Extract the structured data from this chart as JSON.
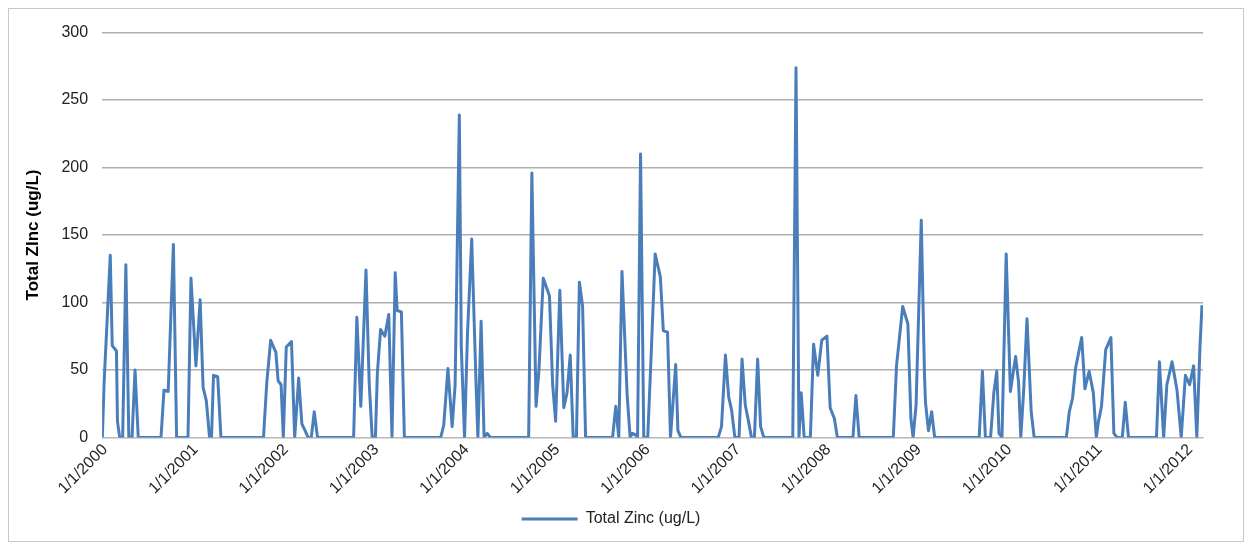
{
  "chart_data": {
    "type": "line",
    "ylabel": "Total ZInc (ug/L)",
    "xlim": [
      "1999-12-20",
      "2012-02-22"
    ],
    "ylim": [
      0,
      300
    ],
    "yticks": [
      0,
      50,
      100,
      150,
      200,
      250,
      300
    ],
    "xticks": [
      {
        "value": "2000-01-01",
        "label": "1/1/2000"
      },
      {
        "value": "2001-01-01",
        "label": "1/1/2001"
      },
      {
        "value": "2002-01-01",
        "label": "1/1/2002"
      },
      {
        "value": "2003-01-01",
        "label": "1/1/2003"
      },
      {
        "value": "2004-01-01",
        "label": "1/1/2004"
      },
      {
        "value": "2005-01-01",
        "label": "1/1/2005"
      },
      {
        "value": "2006-01-01",
        "label": "1/1/2006"
      },
      {
        "value": "2007-01-01",
        "label": "1/1/2007"
      },
      {
        "value": "2008-01-01",
        "label": "1/1/2008"
      },
      {
        "value": "2009-01-01",
        "label": "1/1/2009"
      },
      {
        "value": "2010-01-01",
        "label": "1/1/2010"
      },
      {
        "value": "2011-01-01",
        "label": "1/1/2011"
      },
      {
        "value": "2012-01-01",
        "label": "1/1/2012"
      }
    ],
    "grid": "y",
    "legend": "bottom",
    "marker": "none",
    "line_style": "solid",
    "series": [
      {
        "name": "Total Zinc (ug/L)",
        "color": "#4a7ebb",
        "x": [
          "1999-12-21",
          "1999-12-28",
          "2000-01-22",
          "2000-01-30",
          "2000-02-16",
          "2000-02-20",
          "2000-02-29",
          "2000-03-12",
          "2000-03-25",
          "2000-04-06",
          "2000-04-19",
          "2000-05-01",
          "2000-05-14",
          "2000-08-14",
          "2000-08-26",
          "2000-09-12",
          "2000-10-03",
          "2000-10-16",
          "2000-12-01",
          "2000-12-13",
          "2001-01-02",
          "2001-01-19",
          "2001-01-31",
          "2001-02-13",
          "2001-02-26",
          "2001-03-06",
          "2001-03-14",
          "2001-03-31",
          "2001-04-13",
          "2001-10-02",
          "2001-10-15",
          "2001-10-31",
          "2001-11-21",
          "2001-11-30",
          "2001-12-12",
          "2001-12-21",
          "2002-01-02",
          "2002-01-23",
          "2002-02-05",
          "2002-02-21",
          "2002-03-06",
          "2002-03-19",
          "2002-03-31",
          "2002-04-13",
          "2002-04-25",
          "2002-05-08",
          "2002-10-01",
          "2002-10-14",
          "2002-10-30",
          "2002-11-20",
          "2002-12-03",
          "2002-12-15",
          "2002-12-28",
          "2003-01-05",
          "2003-01-18",
          "2003-02-04",
          "2003-02-20",
          "2003-03-05",
          "2003-03-18",
          "2003-03-26",
          "2003-04-12",
          "2003-04-24",
          "2003-09-18",
          "2003-09-30",
          "2003-10-17",
          "2003-11-03",
          "2003-11-15",
          "2003-12-02",
          "2003-12-10",
          "2003-12-23",
          "2004-01-04",
          "2004-01-21",
          "2004-02-07",
          "2004-02-15",
          "2004-02-28",
          "2004-03-11",
          "2004-03-24",
          "2004-04-05",
          "2004-09-07",
          "2004-09-20",
          "2004-10-07",
          "2004-10-19",
          "2004-11-05",
          "2004-11-30",
          "2004-12-13",
          "2004-12-25",
          "2005-01-11",
          "2005-01-27",
          "2005-02-09",
          "2005-02-22",
          "2005-03-06",
          "2005-03-19",
          "2005-03-31",
          "2005-04-13",
          "2005-04-25",
          "2005-08-12",
          "2005-08-25",
          "2005-09-06",
          "2005-09-19",
          "2005-10-10",
          "2005-10-22",
          "2005-10-31",
          "2005-11-12",
          "2005-11-21",
          "2005-12-03",
          "2005-12-16",
          "2006-01-01",
          "2006-01-14",
          "2006-01-31",
          "2006-02-21",
          "2006-03-05",
          "2006-03-22",
          "2006-04-03",
          "2006-04-24",
          "2006-05-03",
          "2006-05-15",
          "2006-10-13",
          "2006-10-26",
          "2006-11-11",
          "2006-11-24",
          "2006-12-06",
          "2006-12-19",
          "2007-01-05",
          "2007-01-17",
          "2007-01-30",
          "2007-02-11",
          "2007-02-24",
          "2007-03-08",
          "2007-03-21",
          "2007-04-02",
          "2007-04-15",
          "2007-08-10",
          "2007-08-23",
          "2007-09-04",
          "2007-09-13",
          "2007-09-25",
          "2007-10-20",
          "2007-11-02",
          "2007-11-19",
          "2007-12-05",
          "2007-12-26",
          "2008-01-08",
          "2008-01-25",
          "2008-02-06",
          "2008-04-09",
          "2008-04-21",
          "2008-05-04",
          "2008-09-19",
          "2008-10-02",
          "2008-10-27",
          "2008-11-17",
          "2008-11-29",
          "2008-12-08",
          "2008-12-20",
          "2009-01-10",
          "2009-01-23",
          "2009-01-27",
          "2009-02-08",
          "2009-02-21",
          "2009-03-05",
          "2009-09-01",
          "2009-09-14",
          "2009-09-26",
          "2009-10-17",
          "2009-10-30",
          "2009-11-11",
          "2009-11-20",
          "2009-12-02",
          "2009-12-19",
          "2010-01-05",
          "2010-01-26",
          "2010-02-07",
          "2010-02-16",
          "2010-02-28",
          "2010-03-13",
          "2010-03-30",
          "2010-04-11",
          "2010-08-19",
          "2010-08-31",
          "2010-09-13",
          "2010-09-25",
          "2010-10-20",
          "2010-11-02",
          "2010-11-19",
          "2010-12-06",
          "2010-12-18",
          "2010-12-26",
          "2011-01-08",
          "2011-01-25",
          "2011-02-15",
          "2011-02-27",
          "2011-03-12",
          "2011-04-02",
          "2011-04-14",
          "2011-04-27",
          "2011-08-18",
          "2011-08-30",
          "2011-09-16",
          "2011-09-29",
          "2011-10-20",
          "2011-11-09",
          "2011-11-26",
          "2011-12-13",
          "2011-12-30",
          "2012-01-15",
          "2012-01-28",
          "2012-02-10",
          "2012-02-18"
        ],
        "values": [
          0,
          40,
          135,
          68,
          64,
          12,
          0,
          0,
          128,
          0,
          0,
          50,
          0,
          0,
          35,
          34,
          143,
          0,
          0,
          118,
          53,
          102,
          37,
          27,
          0,
          0,
          46,
          45,
          0,
          0,
          40,
          72,
          63,
          42,
          39,
          0,
          67,
          71,
          0,
          44,
          10,
          5,
          0,
          0,
          19,
          0,
          0,
          89,
          23,
          124,
          40,
          0,
          0,
          48,
          80,
          75,
          91,
          0,
          122,
          94,
          93,
          0,
          0,
          9,
          51,
          8,
          39,
          239,
          67,
          0,
          77,
          147,
          43,
          0,
          86,
          0,
          3,
          0,
          0,
          196,
          23,
          51,
          118,
          105,
          39,
          12,
          109,
          22,
          33,
          61,
          0,
          0,
          115,
          97,
          0,
          0,
          23,
          0,
          123,
          31,
          0,
          3,
          2,
          0,
          210,
          0,
          0,
          57,
          136,
          119,
          79,
          78,
          0,
          54,
          5,
          0,
          0,
          8,
          61,
          30,
          20,
          0,
          0,
          58,
          24,
          13,
          0,
          0,
          58,
          8,
          0,
          0,
          274,
          0,
          33,
          0,
          0,
          69,
          46,
          72,
          75,
          22,
          14,
          0,
          0,
          31,
          0,
          0,
          53,
          97,
          84,
          14,
          0,
          24,
          161,
          46,
          26,
          5,
          19,
          0,
          0,
          49,
          0,
          0,
          33,
          49,
          3,
          0,
          136,
          34,
          60,
          41,
          0,
          36,
          88,
          19,
          0,
          0,
          19,
          29,
          51,
          74,
          36,
          49,
          33,
          0,
          11,
          23,
          65,
          74,
          3,
          0,
          0,
          26,
          0,
          0,
          56,
          0,
          39,
          56,
          35,
          0,
          46,
          39,
          53,
          0,
          68,
          98
        ]
      }
    ]
  }
}
